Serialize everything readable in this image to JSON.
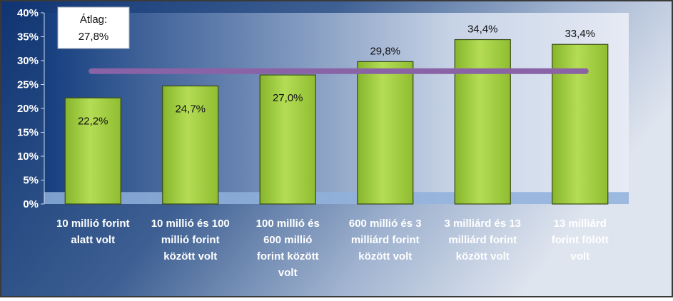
{
  "chart_data": {
    "type": "bar",
    "categories": [
      [
        "10 millió forint",
        "alatt volt"
      ],
      [
        "10 millió és 100",
        "millió forint",
        "között volt"
      ],
      [
        "100 millió és",
        "600 millió",
        "forint között",
        "volt"
      ],
      [
        "600 millió és 3",
        "milliárd forint",
        "között volt"
      ],
      [
        "3 milliárd és 13",
        "milliárd forint",
        "között volt"
      ],
      [
        "13 milliárd",
        "forint fölött",
        "volt"
      ]
    ],
    "values": [
      22.2,
      24.7,
      27.0,
      29.8,
      34.4,
      33.4
    ],
    "data_labels": [
      "22,2%",
      "24,7%",
      "27,0%",
      "29,8%",
      "34,4%",
      "33,4%"
    ],
    "ylim": [
      0,
      40
    ],
    "yticks": [
      0,
      5,
      10,
      15,
      20,
      25,
      30,
      35,
      40
    ],
    "ytick_labels": [
      "0%",
      "5%",
      "10%",
      "15%",
      "20%",
      "25%",
      "30%",
      "35%",
      "40%"
    ],
    "average": {
      "value": 27.8,
      "label_title": "Átlag:",
      "label_value": "27,8%"
    },
    "colors": {
      "bar": "#9acd32",
      "bar_dark": "#6f9a1f",
      "average_line": "#8a63a6",
      "background_dark": "#123a78",
      "background_light": "#dfe6f2"
    }
  }
}
